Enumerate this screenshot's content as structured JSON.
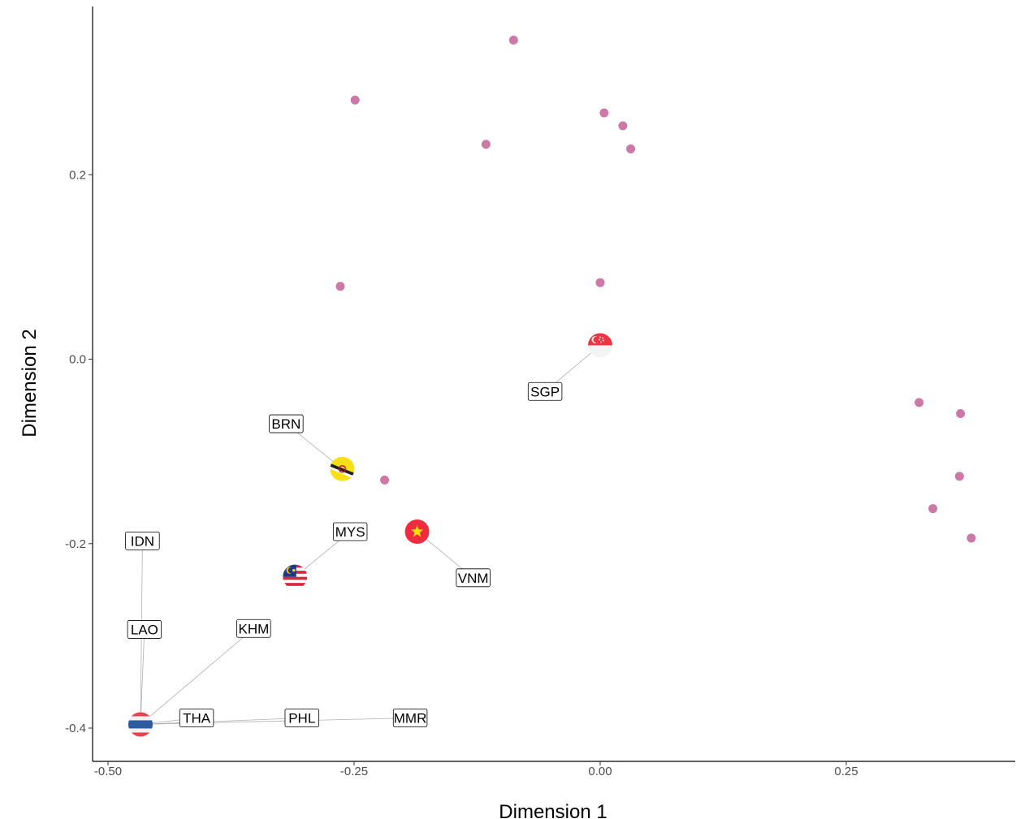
{
  "chart_data": {
    "type": "scatter",
    "title": "",
    "xlabel": "Dimension 1",
    "ylabel": "Dimension 2",
    "xlim": [
      -0.5,
      0.42
    ],
    "ylim": [
      -0.43,
      0.385
    ],
    "x_ticks": [
      {
        "value": -0.5,
        "label": "-0.50"
      },
      {
        "value": -0.25,
        "label": "-0.25"
      },
      {
        "value": 0.0,
        "label": "0.00"
      },
      {
        "value": 0.25,
        "label": "0.25"
      }
    ],
    "y_ticks": [
      {
        "value": 0.2,
        "label": "0.2"
      },
      {
        "value": 0.0,
        "label": "0.0"
      },
      {
        "value": -0.2,
        "label": "-0.2"
      },
      {
        "value": -0.4,
        "label": "-0.4"
      }
    ],
    "grid": false,
    "point_color": "#cc79a7",
    "points": [
      {
        "x": -0.088,
        "y": 0.346
      },
      {
        "x": -0.249,
        "y": 0.281
      },
      {
        "x": 0.004,
        "y": 0.267
      },
      {
        "x": 0.023,
        "y": 0.253
      },
      {
        "x": -0.116,
        "y": 0.233
      },
      {
        "x": 0.031,
        "y": 0.228
      },
      {
        "x": -0.264,
        "y": 0.079
      },
      {
        "x": 0.0,
        "y": 0.083
      },
      {
        "x": 0.324,
        "y": -0.047
      },
      {
        "x": 0.366,
        "y": -0.059
      },
      {
        "x": -0.219,
        "y": -0.131
      },
      {
        "x": 0.365,
        "y": -0.127
      },
      {
        "x": 0.338,
        "y": -0.162
      },
      {
        "x": 0.377,
        "y": -0.194
      }
    ],
    "countries": [
      {
        "code": "SGP",
        "flag": "singapore-flag",
        "x": 0.0,
        "y": 0.015,
        "label_x": -0.056,
        "label_y": -0.035
      },
      {
        "code": "BRN",
        "flag": "brunei-flag",
        "x": -0.262,
        "y": -0.119,
        "label_x": -0.319,
        "label_y": -0.07
      },
      {
        "code": "VNM",
        "flag": "vietnam-flag",
        "x": -0.186,
        "y": -0.187,
        "label_x": -0.129,
        "label_y": -0.237
      },
      {
        "code": "MYS",
        "flag": "malaysia-flag",
        "x": -0.31,
        "y": -0.236,
        "label_x": -0.254,
        "label_y": -0.187
      },
      {
        "code": "IDN",
        "flag": "",
        "x": -0.467,
        "y": -0.396,
        "label_x": -0.465,
        "label_y": -0.197
      },
      {
        "code": "LAO",
        "flag": "",
        "x": -0.467,
        "y": -0.396,
        "label_x": -0.463,
        "label_y": -0.293
      },
      {
        "code": "KHM",
        "flag": "",
        "x": -0.467,
        "y": -0.396,
        "label_x": -0.352,
        "label_y": -0.292
      },
      {
        "code": "THA",
        "flag": "thailand-flag",
        "x": -0.467,
        "y": -0.396,
        "label_x": -0.41,
        "label_y": -0.389
      },
      {
        "code": "PHL",
        "flag": "",
        "x": -0.467,
        "y": -0.396,
        "label_x": -0.303,
        "label_y": -0.389
      },
      {
        "code": "MMR",
        "flag": "",
        "x": -0.467,
        "y": -0.396,
        "label_x": -0.193,
        "label_y": -0.389
      }
    ]
  }
}
